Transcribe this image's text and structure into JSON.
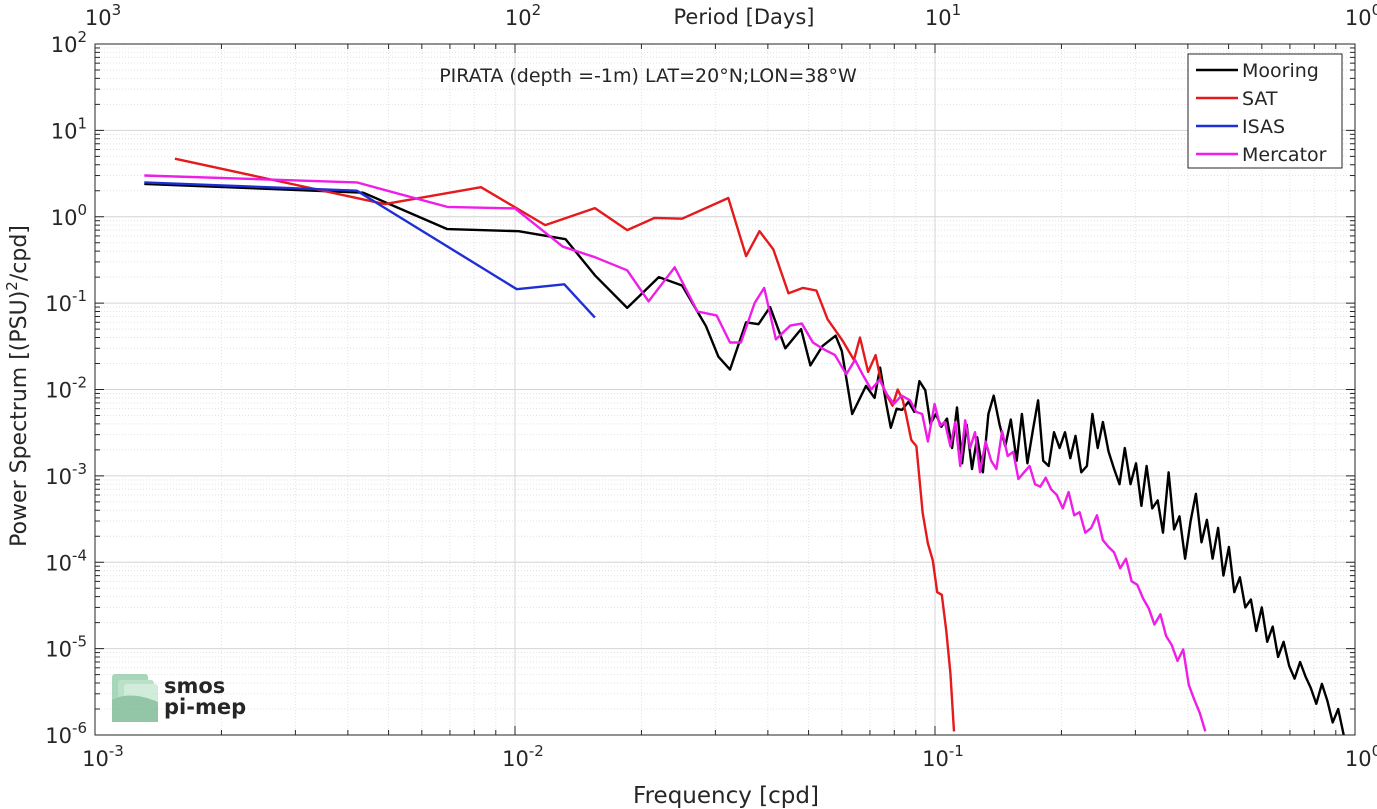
{
  "chart_data": {
    "type": "line",
    "title": "PIRATA (depth =-1m) LAT=20°N;LON=38°W",
    "xlabel": "Frequency [cpd]",
    "ylabel": "Power Spectrum [(PSU)",
    "ylabel_sup": "2",
    "ylabel_tail": "/cpd]",
    "top_xlabel": "Period [Days]",
    "xscale": "log",
    "yscale": "log",
    "xlim": [
      0.001,
      1
    ],
    "ylim": [
      1e-06,
      100
    ],
    "grid": true,
    "legend_position": "top-right",
    "x_ticks": [
      {
        "base": "10",
        "exp": "-3"
      },
      {
        "base": "10",
        "exp": "-2"
      },
      {
        "base": "10",
        "exp": "-1"
      },
      {
        "base": "10",
        "exp": "0"
      }
    ],
    "top_x_ticks": [
      {
        "base": "10",
        "exp": "3"
      },
      {
        "base": "10",
        "exp": "2"
      },
      {
        "base": "10",
        "exp": "1"
      },
      {
        "base": "10",
        "exp": "0"
      }
    ],
    "y_ticks": [
      {
        "base": "10",
        "exp": "-6"
      },
      {
        "base": "10",
        "exp": "-5"
      },
      {
        "base": "10",
        "exp": "-4"
      },
      {
        "base": "10",
        "exp": "-3"
      },
      {
        "base": "10",
        "exp": "-2"
      },
      {
        "base": "10",
        "exp": "-1"
      },
      {
        "base": "10",
        "exp": "0"
      },
      {
        "base": "10",
        "exp": "1"
      },
      {
        "base": "10",
        "exp": "2"
      }
    ],
    "series": [
      {
        "name": "Mooring",
        "color": "#000000",
        "x": [
          0.00131,
          0.00435,
          0.0069,
          0.0102,
          0.0132,
          0.0155,
          0.0185,
          0.022,
          0.025,
          0.0285,
          0.0305,
          0.0325,
          0.0355,
          0.038,
          0.0405,
          0.044,
          0.048,
          0.0505,
          0.054,
          0.058,
          0.06,
          0.0635,
          0.0665,
          0.0685,
          0.0718,
          0.074,
          0.0765,
          0.0785,
          0.081,
          0.0835,
          0.0865,
          0.0893,
          0.0918,
          0.0948,
          0.0975,
          0.1005,
          0.1035,
          0.1068,
          0.1098,
          0.1128,
          0.116,
          0.119,
          0.1225,
          0.126,
          0.13,
          0.134,
          0.138,
          0.1425,
          0.147,
          0.1515,
          0.1565,
          0.161,
          0.166,
          0.171,
          0.176,
          0.181,
          0.1865,
          0.192,
          0.198,
          0.204,
          0.21,
          0.216,
          0.223,
          0.23,
          0.237,
          0.244,
          0.251,
          0.259,
          0.267,
          0.275,
          0.283,
          0.292,
          0.301,
          0.31,
          0.319,
          0.329,
          0.339,
          0.349,
          0.36,
          0.371,
          0.382,
          0.394,
          0.406,
          0.418,
          0.431,
          0.444,
          0.458,
          0.472,
          0.486,
          0.501,
          0.516,
          0.532,
          0.548,
          0.565,
          0.582,
          0.6,
          0.618,
          0.637,
          0.656,
          0.676,
          0.697,
          0.718,
          0.74,
          0.762,
          0.785,
          0.809,
          0.834,
          0.859,
          0.885,
          0.912,
          0.94
        ],
        "y": [
          2.4,
          1.9,
          0.72,
          0.68,
          0.55,
          0.21,
          0.088,
          0.2,
          0.16,
          0.054,
          0.024,
          0.017,
          0.06,
          0.057,
          0.09,
          0.03,
          0.05,
          0.019,
          0.032,
          0.042,
          0.028,
          0.0052,
          0.0082,
          0.011,
          0.008,
          0.018,
          0.007,
          0.0036,
          0.006,
          0.0058,
          0.0072,
          0.0055,
          0.0125,
          0.0098,
          0.004,
          0.0052,
          0.0037,
          0.0046,
          0.0021,
          0.0062,
          0.0014,
          0.0039,
          0.0012,
          0.0028,
          0.0011,
          0.0052,
          0.0085,
          0.0039,
          0.0022,
          0.0045,
          0.0015,
          0.0052,
          0.0014,
          0.0034,
          0.0075,
          0.0015,
          0.0013,
          0.0032,
          0.0021,
          0.0032,
          0.0016,
          0.0029,
          0.0011,
          0.0013,
          0.0052,
          0.0021,
          0.0042,
          0.0019,
          0.0012,
          0.0008,
          0.0021,
          0.0008,
          0.0014,
          0.00045,
          0.0013,
          0.00042,
          0.00052,
          0.00022,
          0.0011,
          0.00024,
          0.00034,
          0.00011,
          0.0003,
          0.00062,
          0.00017,
          0.00031,
          0.00011,
          0.00025,
          7e-05,
          0.00015,
          4.5e-05,
          6.7e-05,
          3e-05,
          3.7e-05,
          1.6e-05,
          3e-05,
          1.2e-05,
          1.8e-05,
          8e-06,
          1.2e-05,
          6.3e-06,
          4.5e-06,
          7e-06,
          4.8e-06,
          3.5e-06,
          2.3e-06,
          3.9e-06,
          2.5e-06,
          1.4e-06,
          2e-06,
          1e-06
        ]
      },
      {
        "name": "SAT",
        "color": "#e41a1c",
        "x": [
          0.00155,
          0.0049,
          0.0083,
          0.0118,
          0.0155,
          0.0185,
          0.0215,
          0.025,
          0.0322,
          0.0355,
          0.0382,
          0.0412,
          0.0448,
          0.0485,
          0.0522,
          0.0555,
          0.0602,
          0.0641,
          0.0663,
          0.0693,
          0.0722,
          0.0745,
          0.0768,
          0.0792,
          0.0815,
          0.0838,
          0.0852,
          0.0878,
          0.0903,
          0.0935,
          0.0962,
          0.0988,
          0.1012,
          0.1038,
          0.1064,
          0.1088,
          0.111
        ],
        "y": [
          4.7,
          1.4,
          2.2,
          0.8,
          1.26,
          0.7,
          0.97,
          0.95,
          1.65,
          0.35,
          0.68,
          0.42,
          0.13,
          0.15,
          0.14,
          0.065,
          0.037,
          0.022,
          0.04,
          0.016,
          0.025,
          0.012,
          0.0085,
          0.0065,
          0.01,
          0.0075,
          0.0053,
          0.0026,
          0.0022,
          0.00037,
          0.000165,
          0.000105,
          4.5e-05,
          4.2e-05,
          1.6e-05,
          5.2e-06,
          1.1e-06
        ]
      },
      {
        "name": "ISAS",
        "color": "#1f2fd6",
        "x": [
          0.00131,
          0.0042,
          0.0101,
          0.0131,
          0.0155
        ],
        "y": [
          2.5,
          2.0,
          0.145,
          0.165,
          0.068
        ]
      },
      {
        "name": "Mercator",
        "color": "#ee1de8",
        "x": [
          0.00131,
          0.0042,
          0.0069,
          0.01,
          0.013,
          0.0155,
          0.0185,
          0.0208,
          0.024,
          0.0272,
          0.0302,
          0.0325,
          0.0345,
          0.0372,
          0.0392,
          0.0418,
          0.0452,
          0.0482,
          0.0512,
          0.0545,
          0.0578,
          0.0615,
          0.0645,
          0.0672,
          0.0705,
          0.0738,
          0.0768,
          0.0798,
          0.0832,
          0.0872,
          0.0902,
          0.0932,
          0.0962,
          0.0998,
          0.1028,
          0.1055,
          0.1088,
          0.1118,
          0.1148,
          0.118,
          0.1212,
          0.1245,
          0.128,
          0.132,
          0.136,
          0.14,
          0.1445,
          0.149,
          0.1535,
          0.158,
          0.163,
          0.168,
          0.173,
          0.178,
          0.1835,
          0.189,
          0.195,
          0.2015,
          0.208,
          0.2145,
          0.221,
          0.228,
          0.2355,
          0.243,
          0.251,
          0.259,
          0.267,
          0.276,
          0.285,
          0.294,
          0.303,
          0.313,
          0.323,
          0.333,
          0.344,
          0.355,
          0.366,
          0.378,
          0.39,
          0.402,
          0.414,
          0.427,
          0.44
        ],
        "y": [
          3.0,
          2.5,
          1.3,
          1.25,
          0.45,
          0.34,
          0.24,
          0.105,
          0.26,
          0.08,
          0.072,
          0.035,
          0.035,
          0.1,
          0.15,
          0.038,
          0.055,
          0.058,
          0.035,
          0.029,
          0.025,
          0.015,
          0.022,
          0.015,
          0.01,
          0.013,
          0.0088,
          0.0068,
          0.0085,
          0.0075,
          0.0055,
          0.0052,
          0.0025,
          0.0068,
          0.0038,
          0.0042,
          0.0022,
          0.0042,
          0.0013,
          0.0044,
          0.0021,
          0.0032,
          0.0011,
          0.0025,
          0.0015,
          0.0012,
          0.0033,
          0.0017,
          0.0019,
          0.00092,
          0.0011,
          0.0013,
          0.0008,
          0.00075,
          0.00095,
          0.0007,
          0.0006,
          0.00042,
          0.00065,
          0.00035,
          0.00038,
          0.00022,
          0.00025,
          0.00035,
          0.00018,
          0.00015,
          0.00013,
          8.5e-05,
          0.00011,
          6e-05,
          5.5e-05,
          3.8e-05,
          2.9e-05,
          1.9e-05,
          2.5e-05,
          1.4e-05,
          1.1e-05,
          7.2e-06,
          9.8e-06,
          3.8e-06,
          2.6e-06,
          1.8e-06,
          1.1e-06
        ]
      }
    ]
  },
  "watermark": {
    "line1": "smos",
    "line2": "pi-mep",
    "color": "#7fbf9a"
  }
}
